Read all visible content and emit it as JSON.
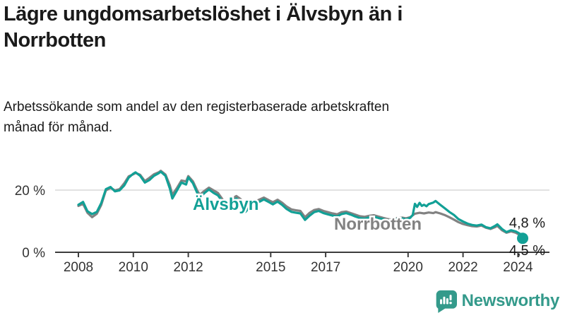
{
  "header": {
    "title": "Lägre ungdomsarbetslöshet i Älvsbyn än i Norrbotten",
    "subtitle": "Arbetssökande som andel av den registerbaserade arbetskraften månad för månad."
  },
  "chart_data": {
    "type": "line",
    "title": "Lägre ungdomsarbetslöshet i Älvsbyn än i Norrbotten",
    "subtitle": "Arbetssökande som andel av den registerbaserade arbetskraften månad för månad.",
    "unit": "%",
    "grid": "horizontal-only",
    "x_axis": {
      "range": [
        2008,
        2024.5
      ],
      "ticks": [
        2008,
        2010,
        2012,
        2015,
        2017,
        2020,
        2022,
        2024
      ],
      "tick_labels": [
        "2008",
        "2010",
        "2012",
        "2015",
        "2017",
        "2020",
        "2022",
        "2024"
      ]
    },
    "y_axis": {
      "range": [
        0,
        28
      ],
      "ticks": [
        {
          "value": 0,
          "label": "0 %"
        },
        {
          "value": 20,
          "label": "20 %"
        }
      ],
      "gridline_at": 20
    },
    "colors": {
      "alvsbyn": "#12a096",
      "norrbotten": "#828282",
      "axis": "#3d3d3d",
      "gridline": "#d9d9d9",
      "end_label": "#1a1a1a",
      "tick_label": "#333333"
    },
    "series": [
      {
        "name": "Älvsbyn",
        "color": "#12a096",
        "end_label": "4,5 %",
        "end_value": 4.5,
        "points": [
          [
            2008.0,
            15.3
          ],
          [
            2008.17,
            16.2
          ],
          [
            2008.33,
            13.2
          ],
          [
            2008.5,
            12.3
          ],
          [
            2008.67,
            13.0
          ],
          [
            2008.83,
            15.8
          ],
          [
            2009.0,
            20.3
          ],
          [
            2009.17,
            21.0
          ],
          [
            2009.33,
            19.6
          ],
          [
            2009.5,
            19.9
          ],
          [
            2009.67,
            21.5
          ],
          [
            2009.83,
            24.0
          ],
          [
            2010.0,
            25.3
          ],
          [
            2010.08,
            25.7
          ],
          [
            2010.25,
            24.6
          ],
          [
            2010.42,
            22.4
          ],
          [
            2010.58,
            23.2
          ],
          [
            2010.75,
            24.6
          ],
          [
            2010.92,
            25.4
          ],
          [
            2011.0,
            25.9
          ],
          [
            2011.17,
            24.6
          ],
          [
            2011.33,
            20.5
          ],
          [
            2011.42,
            17.3
          ],
          [
            2011.58,
            19.8
          ],
          [
            2011.75,
            22.4
          ],
          [
            2011.92,
            21.8
          ],
          [
            2012.0,
            24.1
          ],
          [
            2012.17,
            22.2
          ],
          [
            2012.33,
            19.0
          ],
          [
            2012.42,
            17.7
          ],
          [
            2012.58,
            19.0
          ],
          [
            2012.75,
            20.2
          ],
          [
            2012.92,
            19.1
          ],
          [
            2013.08,
            18.3
          ],
          [
            2013.25,
            16.2
          ],
          [
            2013.42,
            14.9
          ],
          [
            2013.58,
            16.4
          ],
          [
            2013.75,
            17.3
          ],
          [
            2013.92,
            16.1
          ],
          [
            2014.08,
            13.0
          ],
          [
            2014.25,
            14.6
          ],
          [
            2014.42,
            15.6
          ],
          [
            2014.58,
            16.2
          ],
          [
            2014.75,
            17.0
          ],
          [
            2014.92,
            16.2
          ],
          [
            2015.08,
            15.4
          ],
          [
            2015.25,
            16.3
          ],
          [
            2015.42,
            15.2
          ],
          [
            2015.58,
            13.9
          ],
          [
            2015.75,
            13.0
          ],
          [
            2015.92,
            12.7
          ],
          [
            2016.08,
            12.5
          ],
          [
            2016.25,
            10.4
          ],
          [
            2016.42,
            11.8
          ],
          [
            2016.58,
            12.9
          ],
          [
            2016.75,
            13.3
          ],
          [
            2016.92,
            12.6
          ],
          [
            2017.08,
            12.2
          ],
          [
            2017.25,
            11.8
          ],
          [
            2017.42,
            11.5
          ],
          [
            2017.58,
            12.3
          ],
          [
            2017.75,
            12.6
          ],
          [
            2017.92,
            12.1
          ],
          [
            2018.08,
            11.5
          ],
          [
            2018.25,
            11.0
          ],
          [
            2018.42,
            10.8
          ],
          [
            2018.58,
            11.2
          ],
          [
            2018.75,
            11.5
          ],
          [
            2018.92,
            11.0
          ],
          [
            2019.08,
            10.7
          ],
          [
            2019.25,
            10.3
          ],
          [
            2019.42,
            10.1
          ],
          [
            2019.58,
            10.7
          ],
          [
            2019.75,
            10.9
          ],
          [
            2019.92,
            10.6
          ],
          [
            2020.08,
            11.1
          ],
          [
            2020.17,
            12.0
          ],
          [
            2020.25,
            15.6
          ],
          [
            2020.33,
            14.6
          ],
          [
            2020.42,
            15.9
          ],
          [
            2020.5,
            14.9
          ],
          [
            2020.58,
            15.3
          ],
          [
            2020.67,
            14.8
          ],
          [
            2020.75,
            15.5
          ],
          [
            2020.92,
            16.0
          ],
          [
            2021.0,
            16.5
          ],
          [
            2021.17,
            15.3
          ],
          [
            2021.33,
            14.2
          ],
          [
            2021.5,
            13.0
          ],
          [
            2021.67,
            12.0
          ],
          [
            2021.83,
            10.7
          ],
          [
            2022.0,
            9.9
          ],
          [
            2022.17,
            9.2
          ],
          [
            2022.33,
            8.8
          ],
          [
            2022.5,
            8.6
          ],
          [
            2022.67,
            8.9
          ],
          [
            2022.83,
            8.1
          ],
          [
            2023.0,
            7.7
          ],
          [
            2023.17,
            8.5
          ],
          [
            2023.25,
            9.0
          ],
          [
            2023.42,
            7.5
          ],
          [
            2023.58,
            6.5
          ],
          [
            2023.75,
            7.1
          ],
          [
            2023.92,
            6.7
          ],
          [
            2024.08,
            5.9
          ],
          [
            2024.17,
            4.5
          ]
        ]
      },
      {
        "name": "Norrbotten",
        "color": "#828282",
        "end_label": "4,8 %",
        "end_value": 4.8,
        "points": [
          [
            2008.0,
            14.9
          ],
          [
            2008.17,
            15.6
          ],
          [
            2008.33,
            12.7
          ],
          [
            2008.5,
            11.3
          ],
          [
            2008.67,
            12.4
          ],
          [
            2008.83,
            15.2
          ],
          [
            2009.0,
            19.9
          ],
          [
            2009.17,
            20.7
          ],
          [
            2009.33,
            19.9
          ],
          [
            2009.5,
            20.3
          ],
          [
            2009.67,
            22.2
          ],
          [
            2009.83,
            24.4
          ],
          [
            2010.0,
            25.1
          ],
          [
            2010.08,
            25.5
          ],
          [
            2010.25,
            24.9
          ],
          [
            2010.42,
            22.9
          ],
          [
            2010.58,
            23.9
          ],
          [
            2010.75,
            25.1
          ],
          [
            2010.92,
            25.7
          ],
          [
            2011.0,
            26.2
          ],
          [
            2011.17,
            25.0
          ],
          [
            2011.33,
            21.5
          ],
          [
            2011.42,
            18.5
          ],
          [
            2011.58,
            20.6
          ],
          [
            2011.75,
            23.1
          ],
          [
            2011.92,
            22.8
          ],
          [
            2012.0,
            24.5
          ],
          [
            2012.17,
            22.8
          ],
          [
            2012.33,
            19.8
          ],
          [
            2012.42,
            18.5
          ],
          [
            2012.58,
            19.7
          ],
          [
            2012.75,
            20.8
          ],
          [
            2012.92,
            19.9
          ],
          [
            2013.08,
            19.1
          ],
          [
            2013.25,
            17.0
          ],
          [
            2013.42,
            15.8
          ],
          [
            2013.58,
            17.2
          ],
          [
            2013.75,
            18.1
          ],
          [
            2013.92,
            17.0
          ],
          [
            2014.08,
            13.8
          ],
          [
            2014.25,
            15.4
          ],
          [
            2014.42,
            16.3
          ],
          [
            2014.58,
            16.9
          ],
          [
            2014.75,
            17.6
          ],
          [
            2014.92,
            16.8
          ],
          [
            2015.08,
            16.1
          ],
          [
            2015.25,
            16.9
          ],
          [
            2015.42,
            15.9
          ],
          [
            2015.58,
            14.7
          ],
          [
            2015.75,
            13.8
          ],
          [
            2015.92,
            13.5
          ],
          [
            2016.08,
            13.3
          ],
          [
            2016.25,
            11.3
          ],
          [
            2016.42,
            12.7
          ],
          [
            2016.58,
            13.6
          ],
          [
            2016.75,
            13.9
          ],
          [
            2016.92,
            13.3
          ],
          [
            2017.08,
            12.9
          ],
          [
            2017.25,
            12.5
          ],
          [
            2017.42,
            12.2
          ],
          [
            2017.58,
            12.9
          ],
          [
            2017.75,
            13.1
          ],
          [
            2017.92,
            12.6
          ],
          [
            2018.08,
            12.1
          ],
          [
            2018.25,
            11.6
          ],
          [
            2018.42,
            11.4
          ],
          [
            2018.58,
            11.7
          ],
          [
            2018.75,
            11.9
          ],
          [
            2018.92,
            11.5
          ],
          [
            2019.08,
            11.1
          ],
          [
            2019.25,
            10.7
          ],
          [
            2019.42,
            10.5
          ],
          [
            2019.58,
            11.0
          ],
          [
            2019.75,
            11.2
          ],
          [
            2019.92,
            10.9
          ],
          [
            2020.08,
            11.3
          ],
          [
            2020.25,
            12.4
          ],
          [
            2020.42,
            12.7
          ],
          [
            2020.58,
            12.5
          ],
          [
            2020.75,
            12.8
          ],
          [
            2020.92,
            12.6
          ],
          [
            2021.0,
            12.9
          ],
          [
            2021.17,
            12.5
          ],
          [
            2021.33,
            12.0
          ],
          [
            2021.5,
            11.3
          ],
          [
            2021.67,
            10.5
          ],
          [
            2021.83,
            9.7
          ],
          [
            2022.0,
            9.1
          ],
          [
            2022.17,
            8.7
          ],
          [
            2022.33,
            8.4
          ],
          [
            2022.5,
            8.3
          ],
          [
            2022.67,
            8.6
          ],
          [
            2022.83,
            7.9
          ],
          [
            2023.0,
            7.5
          ],
          [
            2023.17,
            8.1
          ],
          [
            2023.25,
            8.5
          ],
          [
            2023.42,
            7.1
          ],
          [
            2023.58,
            6.3
          ],
          [
            2023.75,
            6.7
          ],
          [
            2023.92,
            6.3
          ],
          [
            2024.08,
            5.5
          ],
          [
            2024.17,
            4.8
          ]
        ]
      }
    ],
    "legend_position": "inline-labels-on-lines"
  },
  "footer": {
    "brand": "Newsworthy",
    "brand_color": "#349a8b"
  }
}
